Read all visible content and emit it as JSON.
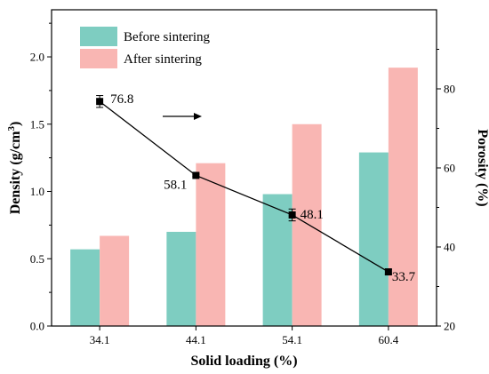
{
  "chart_data": {
    "type": "bar",
    "categories": [
      "34.1",
      "44.1",
      "54.1",
      "60.4"
    ],
    "xlabel": "Solid loading (%)",
    "ylabel": "Density (g/cm",
    "ylabel_superscript": "3",
    "ylabel_suffix": ")",
    "y2label": "Porosity (%)",
    "ylim": [
      0.0,
      2.35
    ],
    "yticks": [
      "0.0",
      "0.5",
      "1.0",
      "1.5",
      "2.0"
    ],
    "y2lim": [
      20,
      100
    ],
    "y2ticks": [
      "20",
      "40",
      "60",
      "80"
    ],
    "series": [
      {
        "name": "Before sintering",
        "values": [
          0.57,
          0.7,
          0.98,
          1.29
        ],
        "color": "#7ecdc1"
      },
      {
        "name": "After sintering",
        "values": [
          0.67,
          1.21,
          1.5,
          1.92
        ],
        "color": "#f9b6b3"
      }
    ],
    "line_series": {
      "axis": "right",
      "values": [
        76.8,
        58.1,
        48.1,
        33.7
      ],
      "labels": [
        "76.8",
        "58.1",
        "48.1",
        "33.7"
      ],
      "error": [
        1.5,
        0.3,
        1.5,
        0.6
      ],
      "color": "#000000",
      "marker": "square"
    },
    "legend_placement": "top-left",
    "grid": false,
    "annotation": "arrow pointing right near 76.8 point"
  }
}
